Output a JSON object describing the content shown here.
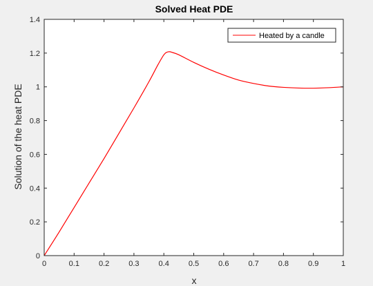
{
  "chart_data": {
    "type": "line",
    "title": "Solved Heat PDE",
    "xlabel": "x",
    "ylabel": "Solution of the heat PDE",
    "xlim": [
      0,
      1
    ],
    "ylim": [
      0,
      1.4
    ],
    "xticks": [
      0,
      0.1,
      0.2,
      0.3,
      0.4,
      0.5,
      0.6,
      0.7,
      0.8,
      0.9,
      1
    ],
    "xtick_labels": [
      "0",
      "0.1",
      "0.2",
      "0.3",
      "0.4",
      "0.5",
      "0.6",
      "0.7",
      "0.8",
      "0.9",
      "1"
    ],
    "yticks": [
      0,
      0.2,
      0.4,
      0.6,
      0.8,
      1,
      1.2,
      1.4
    ],
    "ytick_labels": [
      "0",
      "0.2",
      "0.4",
      "0.6",
      "0.8",
      "1",
      "1.2",
      "1.4"
    ],
    "grid": false,
    "legend_location": "top-right",
    "series": [
      {
        "name": "Heated by a candle",
        "color": "#ff0000",
        "x": [
          0,
          0.05,
          0.1,
          0.15,
          0.2,
          0.25,
          0.3,
          0.35,
          0.38,
          0.4,
          0.41,
          0.42,
          0.43,
          0.45,
          0.5,
          0.55,
          0.6,
          0.65,
          0.7,
          0.75,
          0.8,
          0.85,
          0.9,
          0.95,
          1.0
        ],
        "y": [
          0.0,
          0.14,
          0.285,
          0.43,
          0.575,
          0.725,
          0.875,
          1.03,
          1.13,
          1.19,
          1.205,
          1.208,
          1.203,
          1.19,
          1.145,
          1.105,
          1.07,
          1.04,
          1.02,
          1.005,
          0.997,
          0.993,
          0.992,
          0.995,
          1.0
        ]
      }
    ]
  }
}
